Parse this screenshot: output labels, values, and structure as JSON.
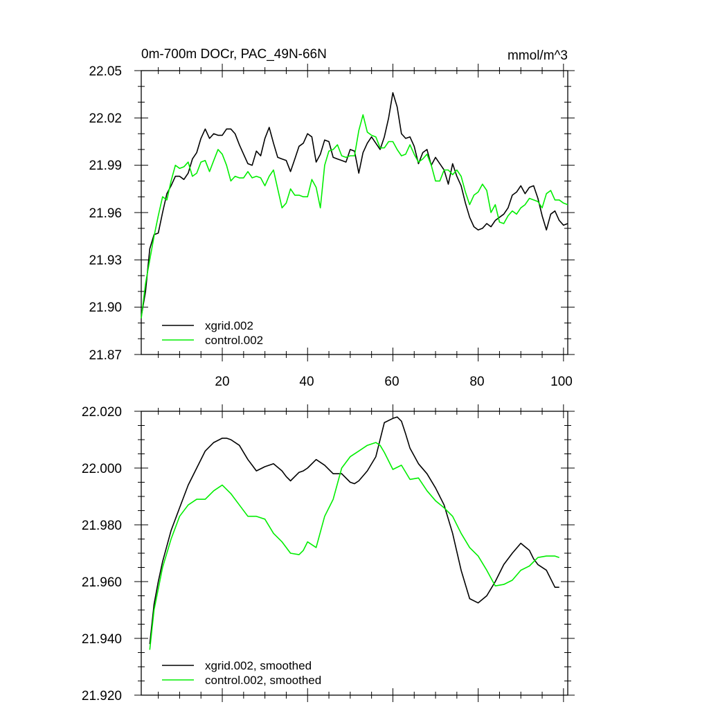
{
  "chart_data": [
    {
      "type": "line",
      "title": "0m-700m DOCr, PAC_49N-66N",
      "units": "mmol/m^3",
      "xlim": [
        1,
        101
      ],
      "ylim": [
        21.87,
        22.05
      ],
      "yticks": [
        "22.05",
        "22.02",
        "21.99",
        "21.96",
        "21.93",
        "21.90",
        "21.87"
      ],
      "xticks": [
        "20",
        "40",
        "60",
        "80",
        "100"
      ],
      "legend_position": "bottom-left",
      "series": [
        {
          "name": "xgrid.002",
          "color": "#000000",
          "x": [
            1,
            2,
            3,
            4,
            5,
            6,
            7,
            8,
            9,
            10,
            11,
            12,
            13,
            14,
            15,
            16,
            17,
            18,
            19,
            20,
            21,
            22,
            23,
            24,
            25,
            26,
            27,
            28,
            29,
            30,
            31,
            32,
            33,
            34,
            35,
            36,
            37,
            38,
            39,
            40,
            41,
            42,
            43,
            44,
            45,
            46,
            47,
            48,
            49,
            50,
            51,
            52,
            53,
            54,
            55,
            56,
            57,
            58,
            59,
            60,
            61,
            62,
            63,
            64,
            65,
            66,
            67,
            68,
            69,
            70,
            71,
            72,
            73,
            74,
            75,
            76,
            77,
            78,
            79,
            80,
            81,
            82,
            83,
            84,
            85,
            86,
            87,
            88,
            89,
            90,
            91,
            92,
            93,
            94,
            95,
            96,
            97,
            98,
            99,
            100,
            101
          ],
          "values": [
            21.894,
            21.91,
            21.937,
            21.946,
            21.947,
            21.96,
            21.972,
            21.977,
            21.983,
            21.983,
            21.981,
            21.985,
            21.994,
            21.998,
            22.007,
            22.013,
            22.007,
            22.01,
            22.009,
            22.009,
            22.013,
            22.013,
            22.01,
            22.003,
            21.997,
            21.991,
            21.99,
            21.999,
            21.996,
            22.007,
            22.014,
            22.004,
            21.995,
            21.994,
            21.993,
            21.986,
            21.994,
            22.002,
            22.004,
            22.01,
            22.008,
            21.992,
            21.997,
            22.006,
            22.005,
            21.995,
            21.994,
            21.993,
            21.992,
            22.0,
            21.999,
            21.985,
            21.998,
            22.004,
            22.008,
            22.004,
            22.0,
            22.008,
            22.02,
            22.036,
            22.027,
            22.01,
            22.007,
            22.008,
            22.002,
            21.991,
            21.998,
            22.0,
            21.99,
            21.995,
            21.991,
            21.987,
            21.978,
            21.991,
            21.983,
            21.977,
            21.966,
            21.957,
            21.951,
            21.949,
            21.95,
            21.953,
            21.951,
            21.955,
            21.957,
            21.959,
            21.963,
            21.971,
            21.973,
            21.977,
            21.972,
            21.976,
            21.977,
            21.969,
            21.958,
            21.949,
            21.959,
            21.961,
            21.955,
            21.952,
            21.953
          ]
        },
        {
          "name": "control.002",
          "color": "#00ee00",
          "x": [
            1,
            2,
            3,
            4,
            5,
            6,
            7,
            8,
            9,
            10,
            11,
            12,
            13,
            14,
            15,
            16,
            17,
            18,
            19,
            20,
            21,
            22,
            23,
            24,
            25,
            26,
            27,
            28,
            29,
            30,
            31,
            32,
            33,
            34,
            35,
            36,
            37,
            38,
            39,
            40,
            41,
            42,
            43,
            44,
            45,
            46,
            47,
            48,
            49,
            50,
            51,
            52,
            53,
            54,
            55,
            56,
            57,
            58,
            59,
            60,
            61,
            62,
            63,
            64,
            65,
            66,
            67,
            68,
            69,
            70,
            71,
            72,
            73,
            74,
            75,
            76,
            77,
            78,
            79,
            80,
            81,
            82,
            83,
            84,
            85,
            86,
            87,
            88,
            89,
            90,
            91,
            92,
            93,
            94,
            95,
            96,
            97,
            98,
            99,
            100,
            101
          ],
          "values": [
            21.893,
            21.915,
            21.93,
            21.945,
            21.958,
            21.97,
            21.968,
            21.98,
            21.99,
            21.988,
            21.989,
            21.992,
            21.983,
            21.985,
            21.992,
            21.993,
            21.986,
            21.993,
            22.0,
            21.997,
            21.99,
            21.98,
            21.983,
            21.982,
            21.982,
            21.986,
            21.982,
            21.983,
            21.982,
            21.977,
            21.983,
            21.987,
            21.975,
            21.963,
            21.966,
            21.975,
            21.971,
            21.971,
            21.97,
            21.97,
            21.981,
            21.976,
            21.963,
            21.99,
            21.999,
            22.0,
            22.003,
            21.996,
            21.995,
            21.996,
            21.996,
            22.012,
            22.022,
            22.011,
            22.009,
            22.008,
            22.001,
            22.001,
            22.005,
            22.005,
            22.0,
            21.996,
            21.997,
            22.003,
            21.997,
            21.992,
            21.994,
            21.997,
            21.99,
            21.98,
            21.98,
            21.987,
            21.987,
            21.984,
            21.987,
            21.983,
            21.973,
            21.965,
            21.971,
            21.973,
            21.978,
            21.974,
            21.96,
            21.965,
            21.954,
            21.953,
            21.958,
            21.961,
            21.959,
            21.963,
            21.965,
            21.969,
            21.968,
            21.967,
            21.963,
            21.972,
            21.974,
            21.968,
            21.968,
            21.966,
            21.965
          ]
        }
      ]
    },
    {
      "type": "line",
      "title": "",
      "xlim": [
        1,
        101
      ],
      "ylim": [
        21.92,
        22.02
      ],
      "yticks": [
        "22.020",
        "22.000",
        "21.980",
        "21.960",
        "21.940",
        "21.920"
      ],
      "legend_position": "bottom-left",
      "series": [
        {
          "name": "xgrid.002, smoothed",
          "color": "#000000",
          "x": [
            3,
            4,
            5,
            6,
            8,
            10,
            12,
            14,
            16,
            18,
            20,
            21,
            22,
            24,
            26,
            27,
            28,
            30,
            32,
            34,
            35,
            36,
            38,
            39,
            40,
            42,
            44,
            46,
            48,
            50,
            51,
            52,
            54,
            56,
            58,
            60,
            61,
            62,
            63,
            64,
            66,
            68,
            70,
            72,
            74,
            76,
            78,
            80,
            82,
            84,
            86,
            88,
            90,
            92,
            93,
            94,
            96,
            98,
            99
          ],
          "values": [
            21.938,
            21.952,
            21.96,
            21.967,
            21.978,
            21.986,
            21.994,
            22.0,
            22.006,
            22.009,
            22.0105,
            22.0105,
            22.01,
            22.008,
            22.003,
            22.001,
            21.999,
            22.0005,
            22.0015,
            21.999,
            21.997,
            21.9955,
            21.9985,
            21.999,
            22.0,
            22.003,
            22.001,
            21.998,
            21.998,
            21.995,
            21.9945,
            21.9955,
            21.999,
            22.004,
            22.016,
            22.0175,
            22.018,
            22.0165,
            22.012,
            22.007,
            22.0015,
            21.998,
            21.993,
            21.987,
            21.977,
            21.964,
            21.954,
            21.9525,
            21.955,
            21.96,
            21.966,
            21.97,
            21.9735,
            21.971,
            21.968,
            21.966,
            21.964,
            21.958,
            21.958
          ]
        },
        {
          "name": "control.002, smoothed",
          "color": "#00ee00",
          "x": [
            3,
            4,
            6,
            8,
            10,
            12,
            14,
            16,
            18,
            20,
            22,
            24,
            26,
            28,
            30,
            32,
            34,
            36,
            38,
            39,
            40,
            42,
            44,
            46,
            48,
            50,
            52,
            54,
            56,
            57,
            58,
            60,
            62,
            64,
            66,
            68,
            70,
            72,
            74,
            76,
            78,
            80,
            82,
            84,
            86,
            88,
            90,
            92,
            94,
            96,
            97,
            98,
            99
          ],
          "values": [
            21.936,
            21.95,
            21.965,
            21.975,
            21.983,
            21.987,
            21.989,
            21.989,
            21.992,
            21.994,
            21.991,
            21.987,
            21.983,
            21.983,
            21.982,
            21.977,
            21.974,
            21.97,
            21.9695,
            21.971,
            21.974,
            21.972,
            21.983,
            21.989,
            22.0,
            22.004,
            22.006,
            22.008,
            22.009,
            22.008,
            22.0055,
            21.9995,
            22.001,
            21.996,
            21.9965,
            21.992,
            21.9885,
            21.986,
            21.983,
            21.977,
            21.972,
            21.969,
            21.964,
            21.9585,
            21.959,
            21.9605,
            21.964,
            21.9655,
            21.9685,
            21.969,
            21.969,
            21.969,
            21.9685
          ]
        }
      ]
    }
  ]
}
